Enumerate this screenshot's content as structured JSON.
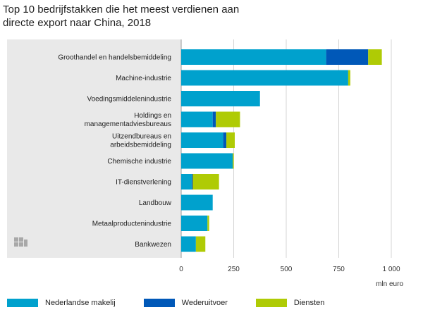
{
  "title_line1": "Top 10 bedrijfstakken die het meest verdienen aan",
  "title_line2": "directe export naar China, 2018",
  "colors": {
    "nederlandse_makelij": "#00a1cd",
    "wederuitvoer": "#0058b8",
    "diensten": "#afcb05",
    "panel": "#e9e9e9",
    "grid": "#d4d4d4"
  },
  "chart_data": {
    "type": "bar",
    "orientation": "horizontal",
    "stacked": true,
    "title": "Top 10 bedrijfstakken die het meest verdienen aan directe export naar China, 2018",
    "xlabel": "mln euro",
    "xlim": [
      0,
      1000
    ],
    "xticks": [
      0,
      250,
      500,
      750,
      1000
    ],
    "xtick_labels": [
      "0",
      "250",
      "500",
      "750",
      "1 000"
    ],
    "grid": true,
    "legend_position": "bottom",
    "categories": [
      [
        "Groothandel en handelsbemiddeling"
      ],
      [
        "Machine-industrie"
      ],
      [
        "Voedingsmiddelenindustrie"
      ],
      [
        "Holdings en",
        "managementadviesbureaus"
      ],
      [
        "Uitzendbureaus en",
        "arbeidsbemiddeling"
      ],
      [
        "Chemische industrie"
      ],
      [
        "IT-dienstverlening"
      ],
      [
        "Landbouw"
      ],
      [
        "Metaalproductenindustrie"
      ],
      [
        "Bankwezen"
      ]
    ],
    "series": [
      {
        "name": "Nederlandse makelij",
        "color": "#00a1cd",
        "values": [
          690,
          795,
          375,
          150,
          200,
          245,
          50,
          150,
          125,
          70
        ]
      },
      {
        "name": "Wederuitvoer",
        "color": "#0058b8",
        "values": [
          200,
          0,
          0,
          15,
          15,
          0,
          5,
          0,
          0,
          0
        ]
      },
      {
        "name": "Diensten",
        "color": "#afcb05",
        "values": [
          65,
          10,
          0,
          115,
          40,
          5,
          125,
          0,
          8,
          45
        ]
      }
    ]
  }
}
